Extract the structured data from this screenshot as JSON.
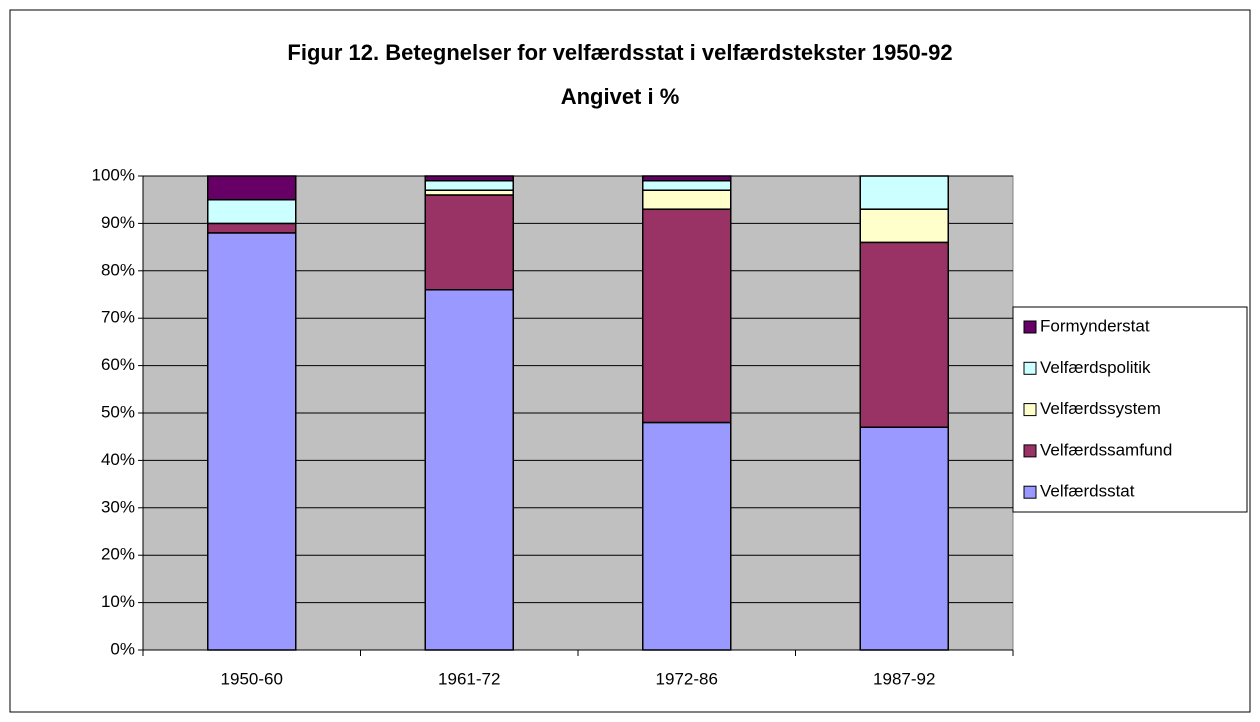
{
  "chart_data": {
    "type": "bar",
    "stacked": true,
    "title": "Figur 12. Betegnelser for velfærdsstat i velfærdstekster 1950-92",
    "subtitle": "Angivet i %",
    "categories": [
      "1950-60",
      "1961-72",
      "1972-86",
      "1987-92"
    ],
    "series": [
      {
        "name": "Velfærdsstat",
        "color": "#9999ff",
        "values": [
          88,
          76,
          48,
          47
        ]
      },
      {
        "name": "Velfærdssamfund",
        "color": "#993366",
        "values": [
          2,
          20,
          45,
          39
        ]
      },
      {
        "name": "Velfærdssystem",
        "color": "#ffffcc",
        "values": [
          0,
          1,
          4,
          7
        ]
      },
      {
        "name": "Velfærdspolitik",
        "color": "#ccffff",
        "values": [
          5,
          2,
          2,
          7
        ]
      },
      {
        "name": "Formynderstat",
        "color": "#660066",
        "values": [
          5,
          1,
          1,
          0
        ]
      }
    ],
    "ylim": [
      0,
      100
    ],
    "yticks": [
      {
        "value": 0,
        "label": "0%"
      },
      {
        "value": 10,
        "label": "10%"
      },
      {
        "value": 20,
        "label": "20%"
      },
      {
        "value": 30,
        "label": "30%"
      },
      {
        "value": 40,
        "label": "40%"
      },
      {
        "value": 50,
        "label": "50%"
      },
      {
        "value": 60,
        "label": "60%"
      },
      {
        "value": 70,
        "label": "70%"
      },
      {
        "value": 80,
        "label": "80%"
      },
      {
        "value": 90,
        "label": "90%"
      },
      {
        "value": 100,
        "label": "100%"
      }
    ],
    "grid": true,
    "legend": "right"
  }
}
